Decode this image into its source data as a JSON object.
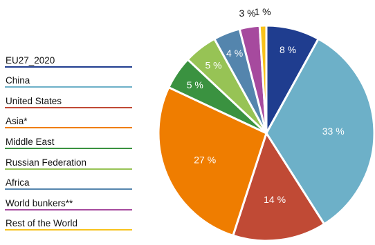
{
  "chart_data": {
    "type": "pie",
    "title": "",
    "slices": [
      {
        "label": "EU27_2020",
        "value": 8,
        "value_label": "8 %",
        "color": "#1f3d8f"
      },
      {
        "label": "China",
        "value": 33,
        "value_label": "33 %",
        "color": "#6db0c8"
      },
      {
        "label": "United States",
        "value": 14,
        "value_label": "14 %",
        "color": "#c04a35"
      },
      {
        "label": "Asia*",
        "value": 27,
        "value_label": "27 %",
        "color": "#ef7d00"
      },
      {
        "label": "Middle East",
        "value": 5,
        "value_label": "5 %",
        "color": "#3a9240"
      },
      {
        "label": "Russian Federation",
        "value": 5,
        "value_label": "5 %",
        "color": "#97c355"
      },
      {
        "label": "Africa",
        "value": 4,
        "value_label": "4 %",
        "color": "#5485ad"
      },
      {
        "label": "World bunkers**",
        "value": 3,
        "value_label": "3 %",
        "color": "#a64a9e"
      },
      {
        "label": "Rest of the World",
        "value": 1,
        "value_label": "1 %",
        "color": "#f8c21b"
      }
    ],
    "legend_position": "left"
  }
}
